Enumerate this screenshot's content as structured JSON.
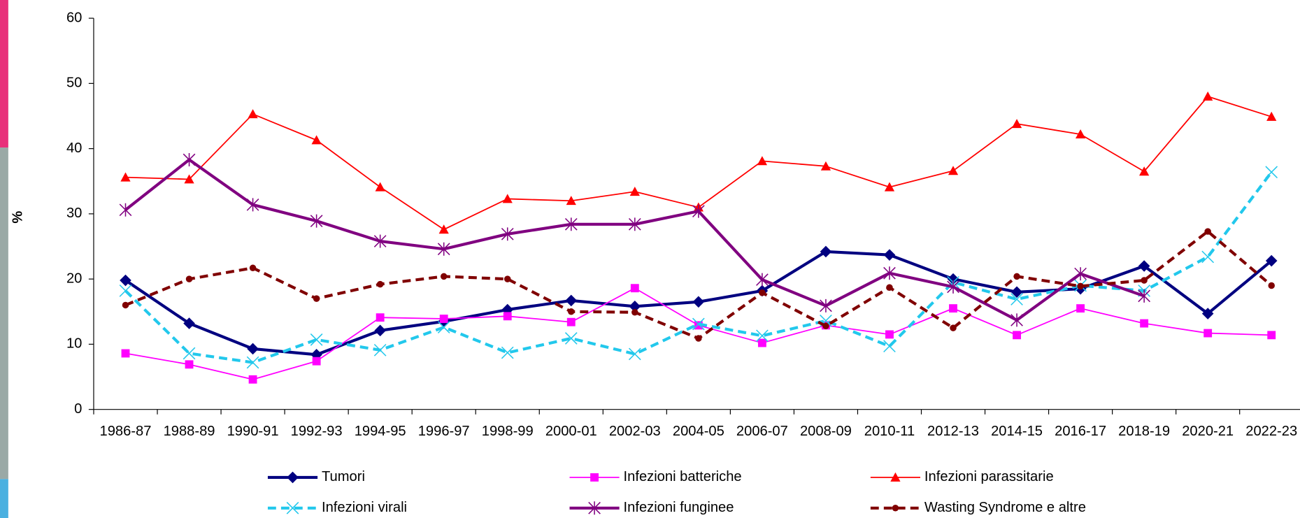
{
  "chart_data": {
    "type": "line",
    "y_label": "%",
    "categories": [
      "1986-87",
      "1988-89",
      "1990-91",
      "1992-93",
      "1994-95",
      "1996-97",
      "1998-99",
      "2000-01",
      "2002-03",
      "2004-05",
      "2006-07",
      "2008-09",
      "2010-11",
      "2012-13",
      "2014-15",
      "2016-17",
      "2018-19",
      "2020-21",
      "2022-23"
    ],
    "ylim": [
      0,
      60
    ],
    "yticks": [
      0,
      10,
      20,
      30,
      40,
      50,
      60
    ],
    "series": [
      {
        "name": "Tumori",
        "color": "#000080",
        "marker": "diamond",
        "dash": false,
        "width": 3.5,
        "values": [
          19.8,
          13.2,
          9.3,
          8.4,
          12.1,
          13.5,
          15.3,
          16.7,
          15.8,
          16.5,
          18.2,
          24.2,
          23.7,
          20.0,
          18.0,
          18.5,
          22.0,
          14.7,
          22.8
        ]
      },
      {
        "name": "Infezioni batteriche",
        "color": "#ff00ff",
        "marker": "square",
        "dash": false,
        "width": 1.5,
        "values": [
          8.6,
          6.9,
          4.6,
          7.4,
          14.1,
          13.9,
          14.3,
          13.4,
          18.6,
          12.9,
          10.2,
          12.9,
          11.5,
          15.5,
          11.4,
          15.5,
          13.2,
          11.7,
          11.4
        ]
      },
      {
        "name": "Infezioni parassitarie",
        "color": "#ff0000",
        "marker": "triangle",
        "dash": false,
        "width": 1.5,
        "values": [
          35.6,
          35.3,
          45.3,
          41.3,
          34.1,
          27.6,
          32.3,
          32.0,
          33.4,
          31.0,
          38.1,
          37.3,
          34.1,
          36.6,
          43.8,
          42.2,
          36.5,
          48.0,
          44.9
        ]
      },
      {
        "name": "Infezioni virali",
        "color": "#22c8ec",
        "marker": "x",
        "dash": true,
        "width": 3.5,
        "values": [
          18.2,
          8.6,
          7.2,
          10.7,
          9.1,
          12.6,
          8.7,
          10.9,
          8.5,
          13.1,
          11.3,
          13.6,
          9.7,
          19.5,
          16.9,
          19.0,
          18.2,
          23.4,
          36.4
        ]
      },
      {
        "name": "Infezioni funginee",
        "color": "#800080",
        "marker": "star",
        "dash": false,
        "width": 3.5,
        "values": [
          30.6,
          38.3,
          31.4,
          28.9,
          25.8,
          24.6,
          26.9,
          28.4,
          28.4,
          30.4,
          19.9,
          15.9,
          20.9,
          18.8,
          13.7,
          20.8,
          17.4,
          null,
          null
        ]
      },
      {
        "name": "Wasting Syndrome e altre",
        "color": "#800000",
        "marker": "circle",
        "dash": true,
        "width": 3.5,
        "values": [
          16.0,
          20.0,
          21.7,
          17.0,
          19.2,
          20.4,
          20.0,
          15.0,
          14.9,
          10.9,
          17.9,
          12.8,
          18.7,
          12.5,
          20.4,
          18.9,
          19.8,
          27.3,
          19.0
        ]
      }
    ]
  }
}
